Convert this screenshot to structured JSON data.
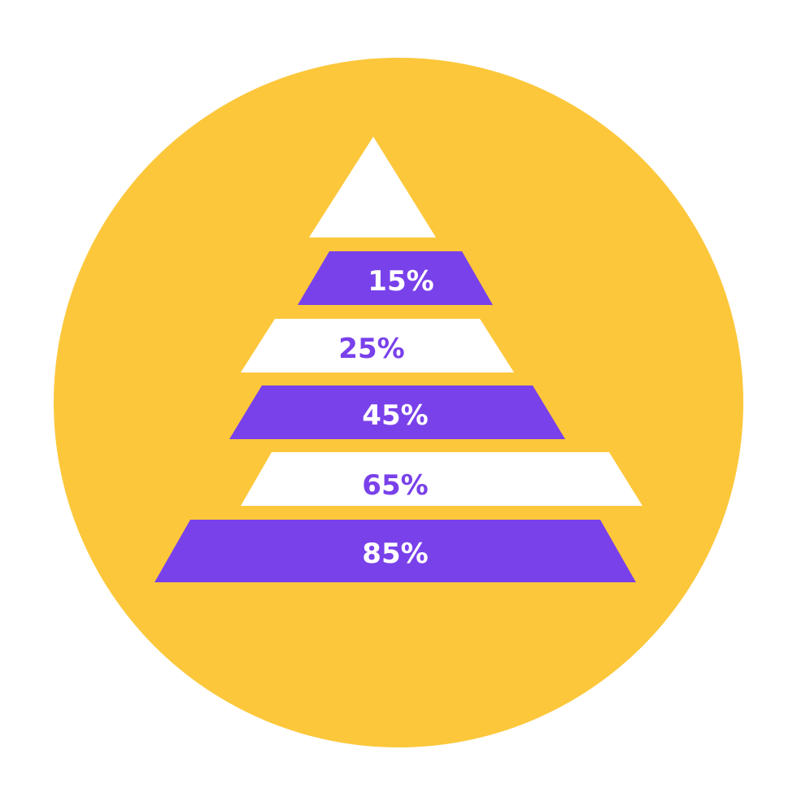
{
  "colors": {
    "background": "#ffffff",
    "circle": "#fcc73b",
    "purple": "#7941ea",
    "white": "#ffffff"
  },
  "pyramid": {
    "tiers": [
      {
        "label": "",
        "fill": "white"
      },
      {
        "label": "15%",
        "fill": "purple"
      },
      {
        "label": "25%",
        "fill": "white"
      },
      {
        "label": "45%",
        "fill": "purple"
      },
      {
        "label": "65%",
        "fill": "white"
      },
      {
        "label": "85%",
        "fill": "purple"
      }
    ]
  }
}
